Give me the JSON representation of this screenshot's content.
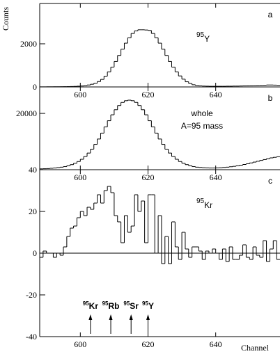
{
  "chart_data": [
    {
      "type": "histogram",
      "panel_label": "a",
      "ylabel": "Counts",
      "bins": [
        588,
        589,
        590,
        591,
        592,
        593,
        594,
        595,
        596,
        597,
        598,
        599,
        600,
        601,
        602,
        603,
        604,
        605,
        606,
        607,
        608,
        609,
        610,
        611,
        612,
        613,
        614,
        615,
        616,
        617,
        618,
        619,
        620,
        621,
        622,
        623,
        624,
        625,
        626,
        627,
        628,
        629,
        630,
        631,
        632,
        633,
        634,
        635,
        636,
        637,
        638,
        639,
        640,
        641,
        642,
        643,
        644,
        645,
        646,
        647,
        648,
        649,
        650,
        651,
        652,
        653,
        654,
        655,
        656,
        657,
        658,
        659
      ],
      "values": [
        5,
        5,
        8,
        8,
        10,
        10,
        12,
        14,
        16,
        20,
        25,
        35,
        45,
        65,
        90,
        125,
        170,
        250,
        350,
        500,
        700,
        920,
        1180,
        1460,
        1750,
        2030,
        2280,
        2480,
        2600,
        2650,
        2650,
        2640,
        2620,
        2480,
        2280,
        2030,
        1750,
        1460,
        1180,
        920,
        700,
        510,
        360,
        240,
        160,
        100,
        70,
        50,
        40,
        35,
        30,
        30,
        30,
        30,
        30,
        35,
        35,
        40,
        40,
        45,
        50,
        55,
        60,
        65,
        70,
        75,
        80,
        90,
        90,
        85,
        80
      ],
      "xlim": [
        588,
        659
      ],
      "ylim": [
        0,
        3870
      ],
      "xticks": [
        600,
        620,
        640
      ],
      "yticks": [
        0,
        2000
      ],
      "annotations": [
        {
          "mass": "95",
          "element": "Y"
        }
      ]
    },
    {
      "type": "histogram",
      "panel_label": "b",
      "bins": [
        588,
        589,
        590,
        591,
        592,
        593,
        594,
        595,
        596,
        597,
        598,
        599,
        600,
        601,
        602,
        603,
        604,
        605,
        606,
        607,
        608,
        609,
        610,
        611,
        612,
        613,
        614,
        615,
        616,
        617,
        618,
        619,
        620,
        621,
        622,
        623,
        624,
        625,
        626,
        627,
        628,
        629,
        630,
        631,
        632,
        633,
        634,
        635,
        636,
        637,
        638,
        639,
        640,
        641,
        642,
        643,
        644,
        645,
        646,
        647,
        648,
        649,
        650,
        651,
        652,
        653,
        654,
        655,
        656,
        657,
        658,
        659
      ],
      "values": [
        300,
        350,
        400,
        500,
        600,
        750,
        900,
        1100,
        1400,
        1800,
        2300,
        2900,
        3700,
        4700,
        5900,
        7300,
        9000,
        10900,
        13000,
        15200,
        17400,
        19500,
        21300,
        22800,
        23900,
        24500,
        24700,
        24500,
        23900,
        22800,
        21300,
        19500,
        17400,
        15200,
        13000,
        10900,
        9000,
        7300,
        5900,
        4700,
        3700,
        2900,
        2300,
        1800,
        1400,
        1100,
        900,
        800,
        700,
        650,
        600,
        600,
        650,
        700,
        800,
        900,
        1050,
        1200,
        1400,
        1600,
        1850,
        2100,
        2400,
        2700,
        3000,
        3300,
        3600,
        3900,
        4200,
        4400,
        4600
      ],
      "xlim": [
        588,
        659
      ],
      "ylim": [
        0,
        29400
      ],
      "xticks": [
        600,
        620,
        640
      ],
      "yticks": [
        20000
      ],
      "text_lines": [
        "whole",
        "A=95 mass"
      ]
    },
    {
      "type": "histogram",
      "panel_label": "c",
      "xlabel": "Channel",
      "bins": [
        588,
        589,
        590,
        591,
        592,
        593,
        594,
        595,
        596,
        597,
        598,
        599,
        600,
        601,
        602,
        603,
        604,
        605,
        606,
        607,
        608,
        609,
        610,
        611,
        612,
        613,
        614,
        615,
        616,
        617,
        618,
        619,
        620,
        621,
        622,
        623,
        624,
        625,
        626,
        627,
        628,
        629,
        630,
        631,
        632,
        633,
        634,
        635,
        636,
        637,
        638,
        639,
        640,
        641,
        642,
        643,
        644,
        645,
        646,
        647,
        648,
        649,
        650,
        651,
        652,
        653,
        654,
        655,
        656,
        657,
        658,
        659
      ],
      "values": [
        -2,
        1,
        0,
        0,
        -2,
        0,
        -1,
        3,
        8,
        12,
        13,
        17,
        20,
        18,
        22,
        21,
        24,
        28,
        24,
        30,
        32,
        29,
        18,
        15,
        5,
        18,
        10,
        13,
        28,
        20,
        25,
        5,
        28,
        28,
        0,
        18,
        -5,
        8,
        -5,
        15,
        3,
        -3,
        10,
        2,
        -2,
        3,
        3,
        1,
        -3,
        1,
        0,
        2,
        0,
        -3,
        2,
        -4,
        3,
        -3,
        -3,
        -1,
        4,
        -2,
        -3,
        3,
        -1,
        -2,
        6,
        -4,
        2,
        6,
        -3
      ],
      "xlim": [
        588,
        659
      ],
      "ylim": [
        -40,
        40
      ],
      "xticks": [
        600,
        620,
        640
      ],
      "yticks": [
        -40,
        -20,
        0,
        20,
        40
      ],
      "annotations": [
        {
          "mass": "95",
          "element": "Kr"
        }
      ],
      "arrows": [
        {
          "mass": "95",
          "element": "Kr",
          "x": 603
        },
        {
          "mass": "95",
          "element": "Rb",
          "x": 609
        },
        {
          "mass": "95",
          "element": "Sr",
          "x": 615
        },
        {
          "mass": "95",
          "element": "Y",
          "x": 620
        }
      ]
    }
  ]
}
